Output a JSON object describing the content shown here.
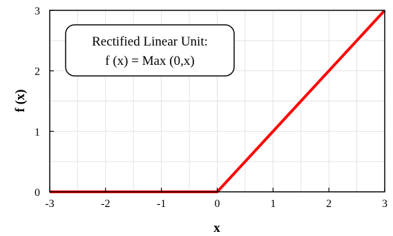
{
  "chart_data": {
    "type": "line",
    "title": "",
    "xlabel": "x",
    "ylabel": "f (x)",
    "xlim": [
      -3,
      3
    ],
    "ylim": [
      0,
      3
    ],
    "xticks": [
      -3,
      -2,
      -1,
      0,
      1,
      2,
      3
    ],
    "yticks": [
      0,
      1,
      2,
      3
    ],
    "grid": true,
    "series": [
      {
        "x": [
          -3,
          0,
          3
        ],
        "y": [
          0,
          0,
          3
        ],
        "color": "#ff0000"
      }
    ],
    "annotation": {
      "line1": "Rectified Linear Unit:",
      "line2": "f (x) = Max (0,x)"
    }
  }
}
